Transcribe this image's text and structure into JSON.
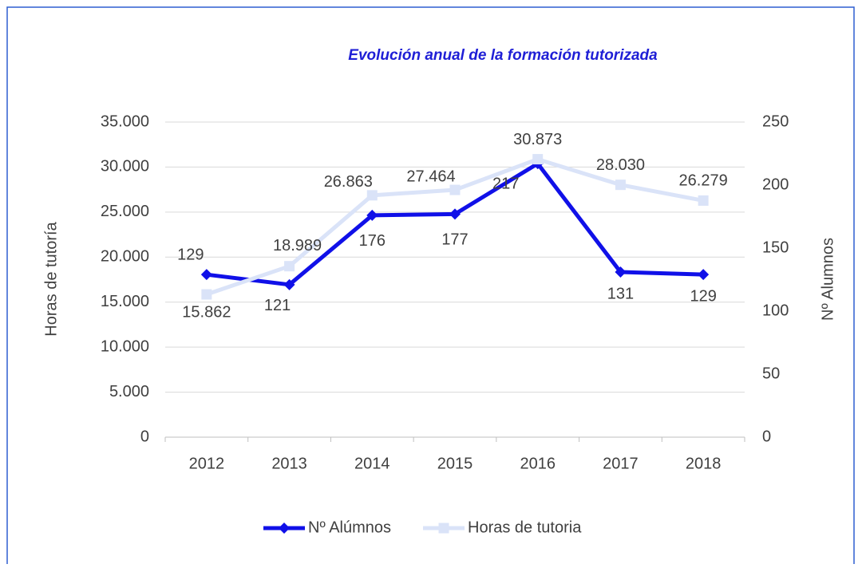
{
  "chart_data": {
    "type": "line",
    "title": "Evolución anual de la formación tutorizada",
    "y_label": "Horas de tutoría",
    "y2_label": "Nº Alumnos",
    "categories": [
      "2012",
      "2013",
      "2014",
      "2015",
      "2016",
      "2017",
      "2018"
    ],
    "series": [
      {
        "name": "Nº Alúmnos",
        "color": "#1010e8",
        "axis": "y2",
        "marker": "diamond",
        "values": [
          129,
          121,
          176,
          177,
          217,
          131,
          129
        ]
      },
      {
        "name": "Horas de tutoria",
        "color": "#dae3f8",
        "axis": "y",
        "marker": "square",
        "values": [
          15862,
          18989,
          26863,
          27464,
          30873,
          28030,
          26279
        ],
        "value_labels": [
          "15.862",
          "18.989",
          "26.863",
          "27.464",
          "30.873",
          "28.030",
          "26.279"
        ]
      }
    ],
    "ylim": [
      0,
      35000
    ],
    "yticks": [
      0,
      {
        "value": 5000,
        "label": "5.000"
      },
      {
        "value": 10000,
        "label": "10.000"
      },
      {
        "value": 15000,
        "label": "15.000"
      },
      {
        "value": 20000,
        "label": "20.000"
      },
      {
        "value": 25000,
        "label": "25.000"
      },
      {
        "value": 30000,
        "label": "30.000"
      },
      {
        "value": 35000,
        "label": "35.000"
      }
    ],
    "y2lim": [
      0,
      250
    ],
    "y2ticks": [
      0,
      50,
      100,
      150,
      200,
      250
    ],
    "grid": true,
    "legend": "bottom"
  }
}
